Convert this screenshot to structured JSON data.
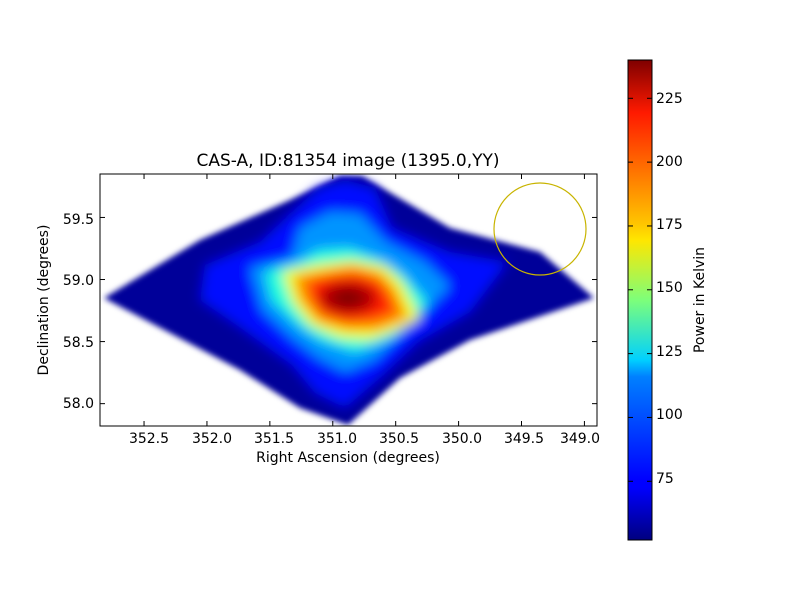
{
  "chart_data": {
    "type": "heatmap",
    "title": "CAS-A, ID:81354 image (1395.0,YY)",
    "xlabel": "Right Ascension (degrees)",
    "ylabel": "Declination (degrees)",
    "xlim": [
      352.85,
      348.9
    ],
    "ylim": [
      57.82,
      59.85
    ],
    "x_ticks": [
      "352.5",
      "352.0",
      "351.5",
      "351.0",
      "350.5",
      "350.0",
      "349.5",
      "349.0"
    ],
    "y_ticks": [
      "58.0",
      "58.5",
      "59.0",
      "59.5"
    ],
    "colormap": "jet",
    "colorbar": {
      "label": "Power in Kelvin",
      "min": 52,
      "max": 240,
      "ticks": [
        "75",
        "100",
        "125",
        "150",
        "175",
        "200",
        "225"
      ]
    },
    "peak": {
      "ra": 350.87,
      "dec": 58.85,
      "value": 240
    },
    "circle": {
      "ra": 349.35,
      "dec": 59.41,
      "radius_deg": 0.36,
      "color": "#c8b400"
    }
  }
}
